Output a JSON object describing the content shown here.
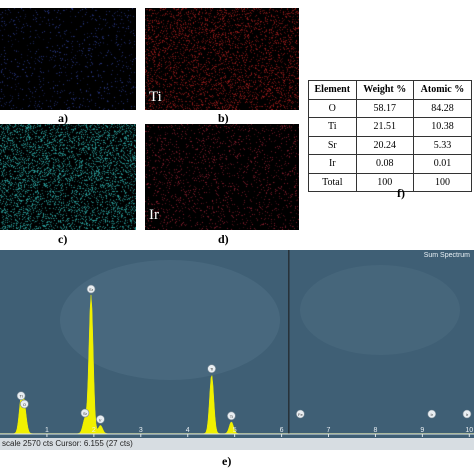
{
  "maps": [
    {
      "caption": "a)",
      "label": "",
      "noise_color": "#2a3a8a"
    },
    {
      "caption": "b)",
      "label": "Ti",
      "noise_color": "#9a1b1b"
    },
    {
      "caption": "c)",
      "label": "",
      "noise_color": "#2aa3a0"
    },
    {
      "caption": "d)",
      "label": "Ir",
      "noise_color": "#8a1e2e"
    }
  ],
  "table": {
    "caption": "f)",
    "headers": [
      "Element",
      "Weight %",
      "Atomic %"
    ],
    "rows": [
      [
        "O",
        "58.17",
        "84.28"
      ],
      [
        "Ti",
        "21.51",
        "10.38"
      ],
      [
        "Sr",
        "20.24",
        "5.33"
      ],
      [
        "Ir",
        "0.08",
        "0.01"
      ],
      [
        "Total",
        "100",
        "100"
      ]
    ]
  },
  "spectrum": {
    "caption": "e)",
    "title": "Sum Spectrum",
    "status_text": "scale 2570 cts Cursor: 6.155  (27 cts)",
    "x_ticks": [
      "1",
      "2",
      "3",
      "4",
      "5",
      "6",
      "7",
      "8",
      "9",
      "10"
    ],
    "cursor_kev": 6.155,
    "x_range": [
      0,
      10.1
    ],
    "y_max_cts": 2570,
    "background_color": "#3f5f75",
    "peak_color": "#f0f000",
    "peaks": [
      {
        "kev": 0.45,
        "cts": 460,
        "label": "Ti"
      },
      {
        "kev": 0.52,
        "cts": 340,
        "label": "O"
      },
      {
        "kev": 1.81,
        "cts": 210,
        "label": "Sr"
      },
      {
        "kev": 1.94,
        "cts": 2000,
        "label": "Sr"
      },
      {
        "kev": 2.14,
        "cts": 120,
        "label": "Ir"
      },
      {
        "kev": 4.51,
        "cts": 850,
        "label": "Ti"
      },
      {
        "kev": 4.93,
        "cts": 170,
        "label": "Ti"
      },
      {
        "kev": 6.4,
        "cts": 0,
        "label": "Fe"
      },
      {
        "kev": 9.2,
        "cts": 0,
        "label": "Ir"
      },
      {
        "kev": 9.95,
        "cts": 0,
        "label": "Ir"
      }
    ]
  }
}
